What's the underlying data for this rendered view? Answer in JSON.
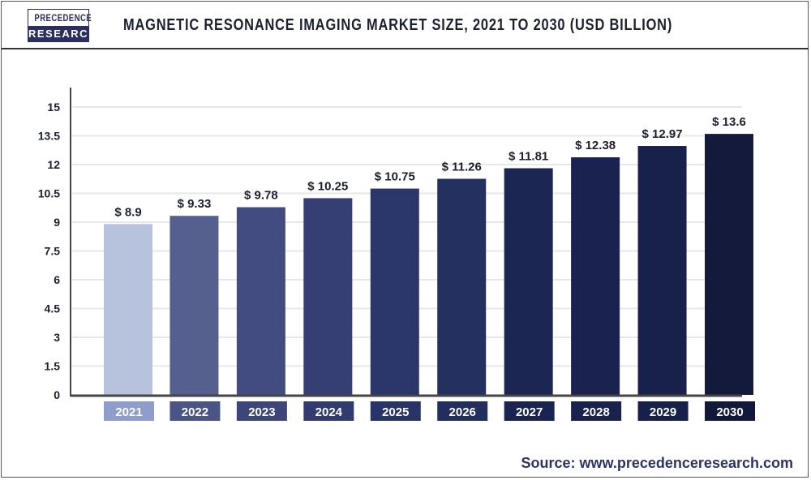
{
  "header": {
    "logo_line1": "PRECEDENCE",
    "logo_line2": "RESEARCH",
    "title": "MAGNETIC RESONANCE IMAGING MARKET SIZE, 2021 TO 2030 (USD BILLION)"
  },
  "source": "Source: www.precedenceresearch.com",
  "chart_data": {
    "type": "bar",
    "title": "MAGNETIC RESONANCE IMAGING MARKET SIZE, 2021 TO 2030 (USD BILLION)",
    "categories": [
      "2021",
      "2022",
      "2023",
      "2024",
      "2025",
      "2026",
      "2027",
      "2028",
      "2029",
      "2030"
    ],
    "values": [
      8.9,
      9.33,
      9.78,
      10.25,
      10.75,
      11.26,
      11.81,
      12.38,
      12.97,
      13.6
    ],
    "data_labels": [
      "$ 8.9",
      "$ 9.33",
      "$ 9.78",
      "$ 10.25",
      "$ 10.75",
      "$ 11.26",
      "$ 11.81",
      "$ 12.38",
      "$ 12.97",
      "$ 13.6"
    ],
    "ylim": [
      0,
      15
    ],
    "yticks": [
      "0",
      "1.5",
      "3",
      "4.5",
      "6",
      "7.5",
      "9",
      "10.5",
      "12",
      "13.5",
      "15"
    ],
    "grid": true,
    "bar_colors": [
      "#b7c2dd",
      "#55608f",
      "#434c80",
      "#363f74",
      "#2b366b",
      "#243160",
      "#1c2653",
      "#1a234f",
      "#182149",
      "#131a3b"
    ],
    "label_box_colors": [
      "#8e9dcb",
      "#4a5585",
      "#3d4679",
      "#323b70",
      "#283368",
      "#222e5e",
      "#1a2452",
      "#19224e",
      "#172048",
      "#12183a"
    ]
  }
}
